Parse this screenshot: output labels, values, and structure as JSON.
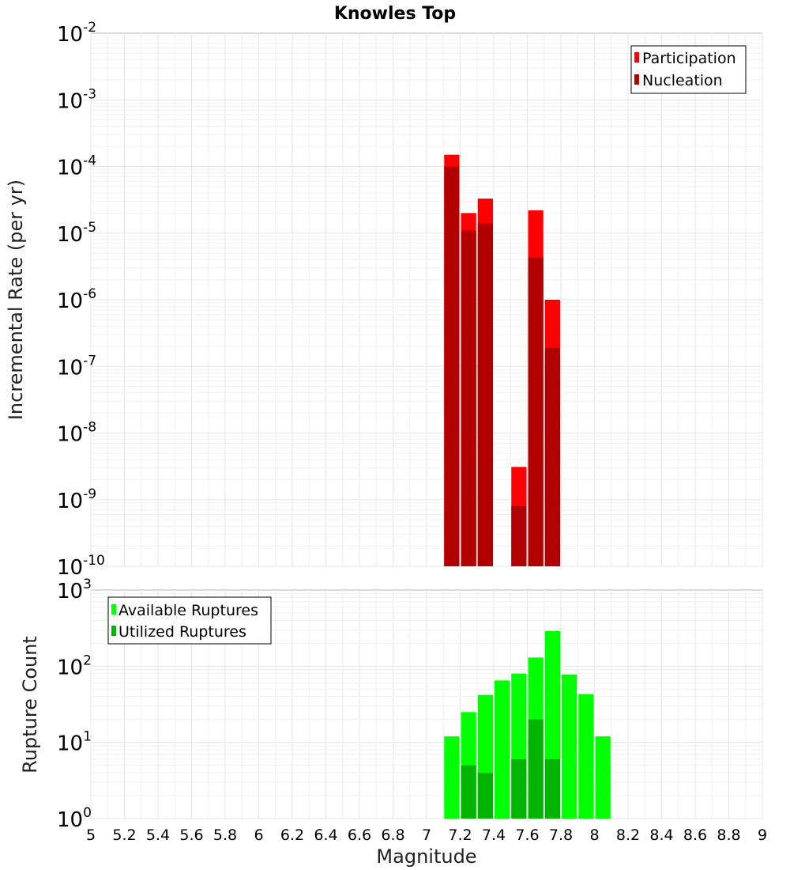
{
  "chart_data": [
    {
      "type": "bar",
      "title": "Knowles Top",
      "xlabel": "",
      "ylabel": "Incremental Rate (per yr)",
      "yscale": "log",
      "ylim_exponents": [
        -10,
        -2
      ],
      "xlim": [
        5,
        9
      ],
      "bin_width": 0.1,
      "grid": true,
      "legend_placement": "top-right",
      "series": [
        {
          "name": "Participation",
          "color": "#ff0000",
          "points": [
            {
              "x": 7.15,
              "y": 0.00015
            },
            {
              "x": 7.25,
              "y": 2e-05
            },
            {
              "x": 7.35,
              "y": 3.3e-05
            },
            {
              "x": 7.55,
              "y": 3.1e-09
            },
            {
              "x": 7.65,
              "y": 2.2e-05
            },
            {
              "x": 7.75,
              "y": 1e-06
            }
          ]
        },
        {
          "name": "Nucleation",
          "color": "#b20000",
          "points": [
            {
              "x": 7.15,
              "y": 0.0001
            },
            {
              "x": 7.25,
              "y": 1.1e-05
            },
            {
              "x": 7.35,
              "y": 1.4e-05
            },
            {
              "x": 7.55,
              "y": 8e-10
            },
            {
              "x": 7.65,
              "y": 4.3e-06
            },
            {
              "x": 7.75,
              "y": 1.9e-07
            }
          ]
        }
      ]
    },
    {
      "type": "bar",
      "title": "",
      "xlabel": "Magnitude",
      "ylabel": "Rupture Count",
      "yscale": "log",
      "ylim_exponents": [
        0,
        3
      ],
      "xlim": [
        5,
        9
      ],
      "bin_width": 0.1,
      "grid": true,
      "legend_placement": "top-left",
      "series": [
        {
          "name": "Available Ruptures",
          "color": "#00ff00",
          "points": [
            {
              "x": 6.95,
              "y": 1
            },
            {
              "x": 7.15,
              "y": 12
            },
            {
              "x": 7.25,
              "y": 25
            },
            {
              "x": 7.35,
              "y": 42
            },
            {
              "x": 7.45,
              "y": 65
            },
            {
              "x": 7.55,
              "y": 80
            },
            {
              "x": 7.65,
              "y": 130
            },
            {
              "x": 7.75,
              "y": 290
            },
            {
              "x": 7.85,
              "y": 78
            },
            {
              "x": 7.95,
              "y": 43
            },
            {
              "x": 8.05,
              "y": 12
            }
          ]
        },
        {
          "name": "Utilized Ruptures",
          "color": "#00b400",
          "points": [
            {
              "x": 7.15,
              "y": 1
            },
            {
              "x": 7.25,
              "y": 5
            },
            {
              "x": 7.35,
              "y": 4
            },
            {
              "x": 7.45,
              "y": 1
            },
            {
              "x": 7.55,
              "y": 6
            },
            {
              "x": 7.65,
              "y": 20
            },
            {
              "x": 7.75,
              "y": 6
            }
          ]
        }
      ],
      "xticks": [
        "5",
        "5.2",
        "5.4",
        "5.6",
        "5.8",
        "6",
        "6.2",
        "6.4",
        "6.6",
        "6.8",
        "7",
        "7.2",
        "7.4",
        "7.6",
        "7.8",
        "8",
        "8.2",
        "8.4",
        "8.6",
        "8.8",
        "9"
      ]
    }
  ]
}
